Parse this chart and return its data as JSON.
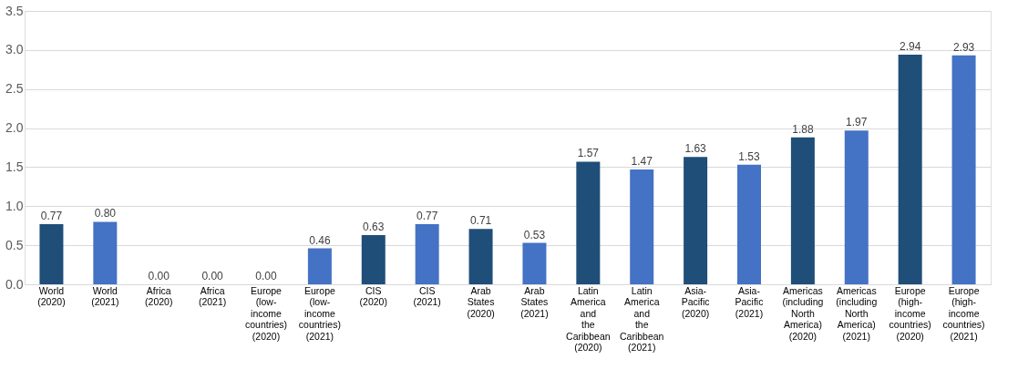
{
  "chart_data": {
    "type": "bar",
    "categories": [
      "World (2020)",
      "World (2021)",
      "Africa (2020)",
      "Africa (2021)",
      "Europe (low-income countries) (2020)",
      "Europe (low-income countries) (2021)",
      "CIS (2020)",
      "CIS (2021)",
      "Arab States (2020)",
      "Arab States (2021)",
      "Latin America and the Caribbean (2020)",
      "Latin America and the Caribbean (2021)",
      "Asia-Pacific (2020)",
      "Asia-Pacific (2021)",
      "Americas (including North America) (2020)",
      "Americas (including North America) (2021)",
      "Europe (high-income countries) (2020)",
      "Europe (high-income countries) (2021)"
    ],
    "values": [
      0.77,
      0.8,
      0.0,
      0.0,
      0.0,
      0.46,
      0.63,
      0.77,
      0.71,
      0.53,
      1.57,
      1.47,
      1.63,
      1.53,
      1.88,
      1.97,
      2.94,
      2.93
    ],
    "colors": [
      "#1f4e79",
      "#4472c4",
      "#1f4e79",
      "#4472c4",
      "#1f4e79",
      "#4472c4",
      "#1f4e79",
      "#4472c4",
      "#1f4e79",
      "#4472c4",
      "#1f4e79",
      "#4472c4",
      "#1f4e79",
      "#4472c4",
      "#1f4e79",
      "#4472c4",
      "#1f4e79",
      "#4472c4"
    ],
    "ylim": [
      0,
      3.5
    ],
    "yticks": [
      {
        "value": 0,
        "label": "0.0"
      },
      {
        "value": 0.5,
        "label": "0.5"
      },
      {
        "value": 1,
        "label": "1.0"
      },
      {
        "value": 1.5,
        "label": "1.5"
      },
      {
        "value": 2,
        "label": "2.0"
      },
      {
        "value": 2.5,
        "label": "2.5"
      },
      {
        "value": 3,
        "label": "3.0"
      },
      {
        "value": 3.5,
        "label": "3.5"
      }
    ],
    "value_labels": [
      "0.77",
      "0.80",
      "0.00",
      "0.00",
      "0.00",
      "0.46",
      "0.63",
      "0.77",
      "0.71",
      "0.53",
      "1.57",
      "1.47",
      "1.63",
      "1.53",
      "1.88",
      "1.97",
      "2.94",
      "2.93"
    ],
    "grid": "y"
  }
}
